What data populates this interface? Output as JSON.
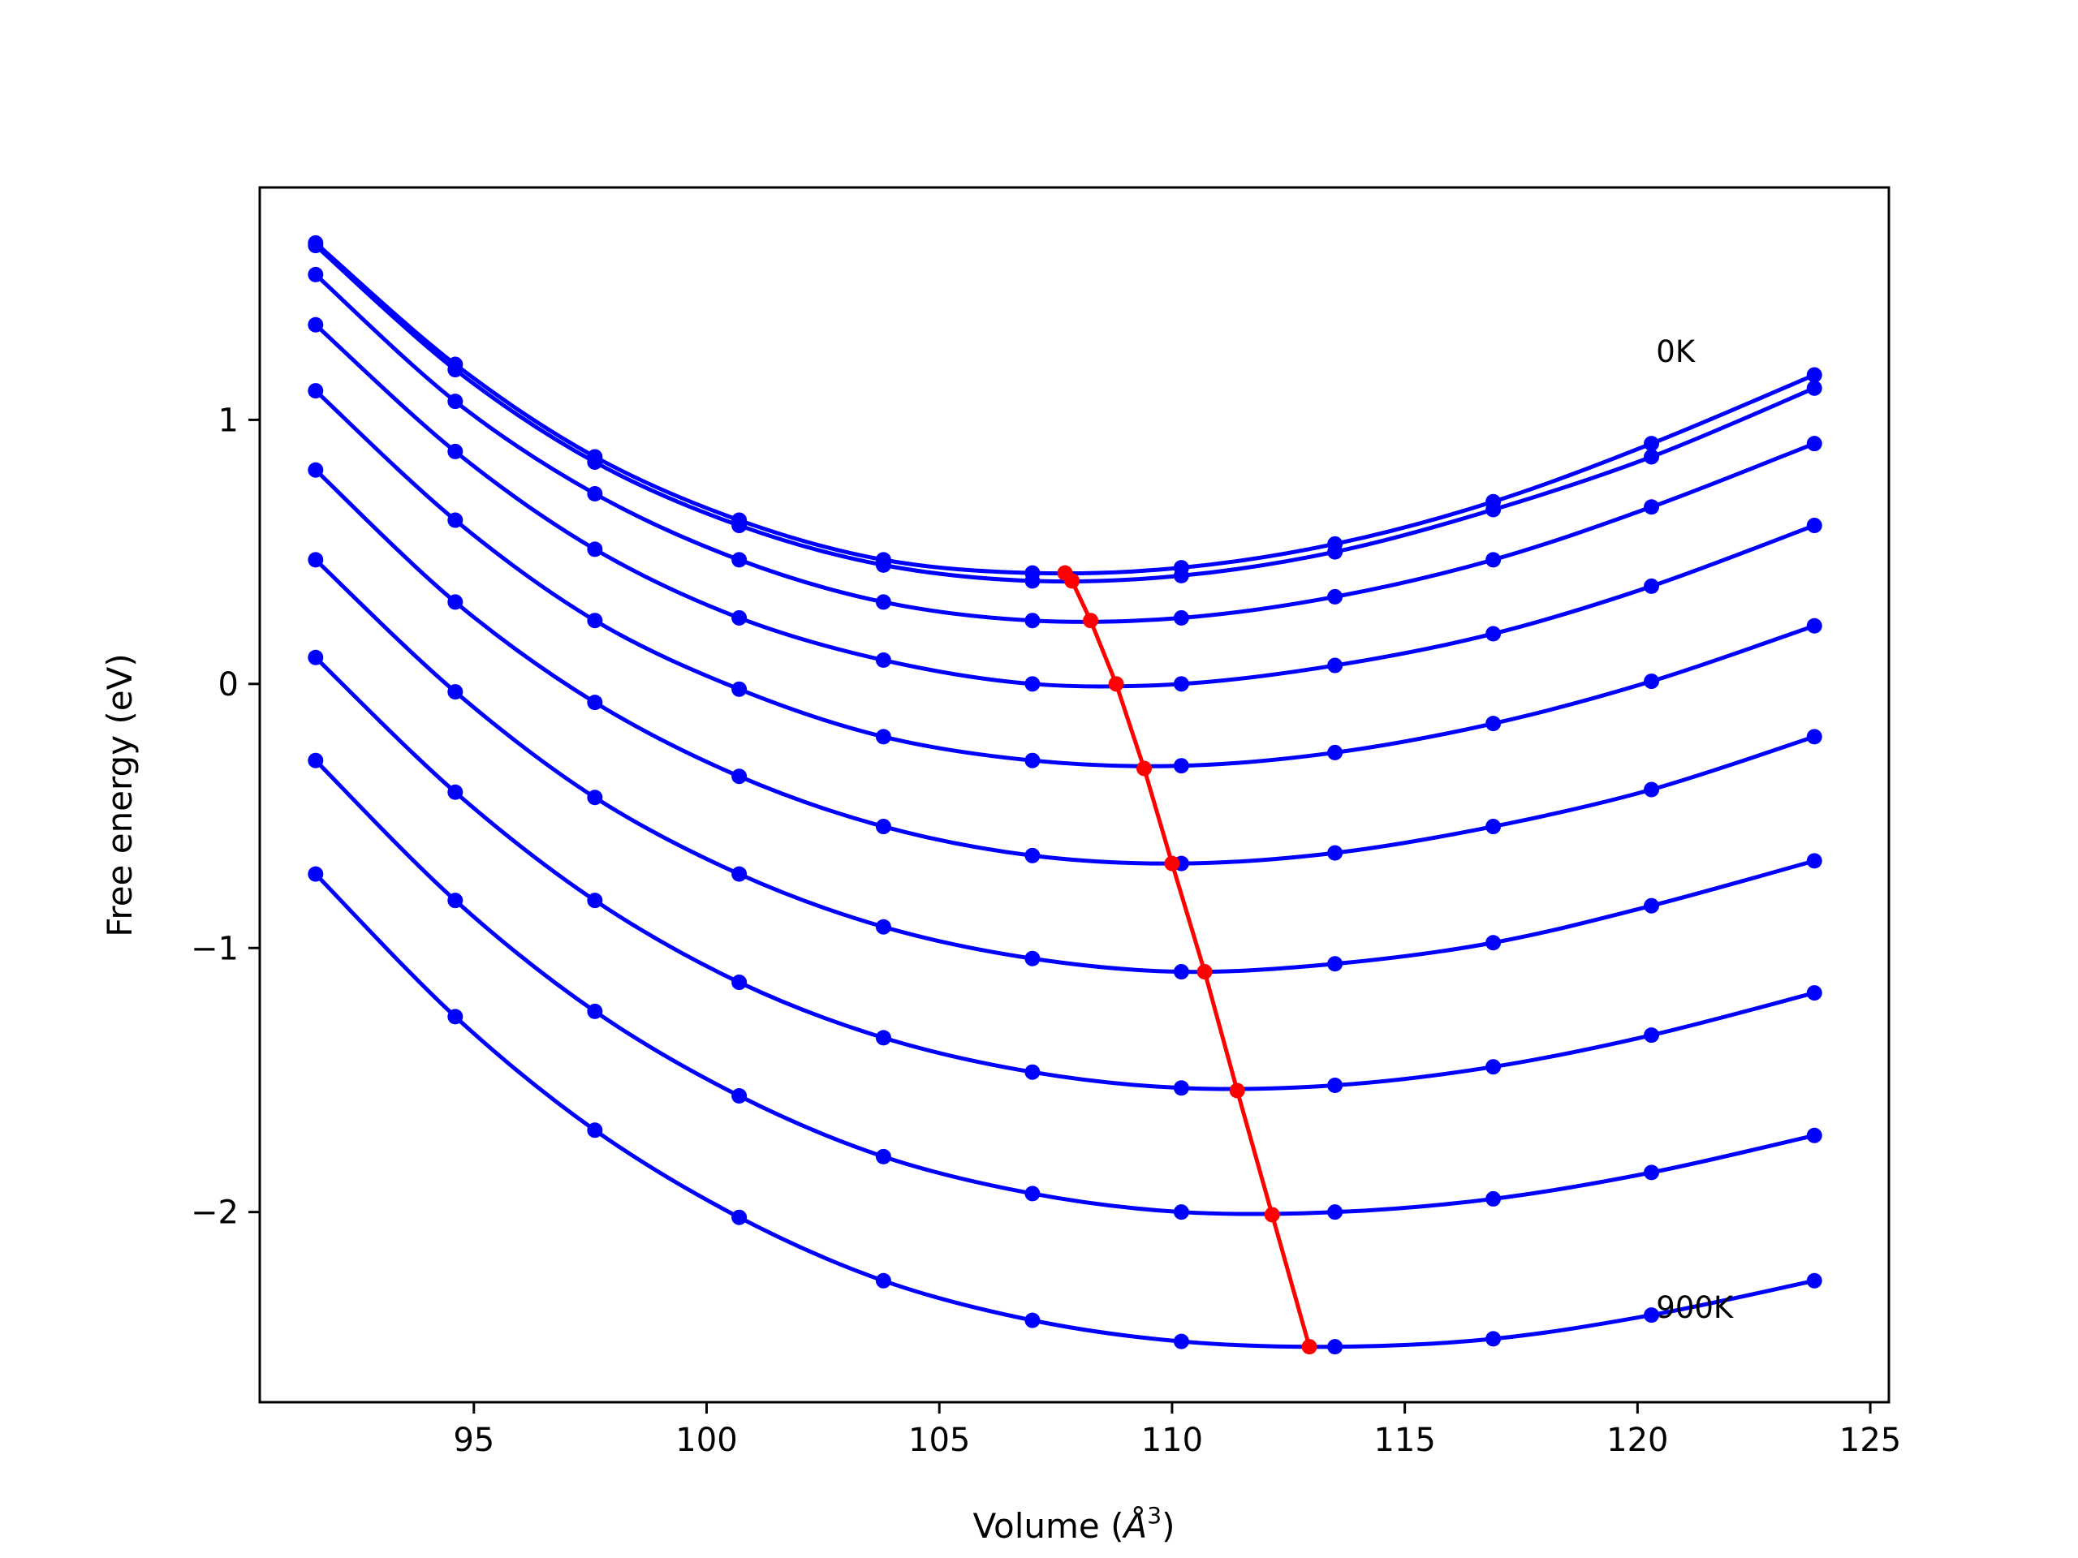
{
  "chart_data": {
    "type": "line",
    "xlabel": "Volume (",
    "xlabel_unit": "Å",
    "xlabel_exp": "3",
    "xlabel_close": ")",
    "ylabel": "Free energy (eV)",
    "xlim": [
      90.4,
      125.4
    ],
    "ylim": [
      -2.72,
      1.88
    ],
    "x_ticks": [
      95,
      100,
      105,
      110,
      115,
      120,
      125
    ],
    "x_tick_labels": [
      "95",
      "100",
      "105",
      "110",
      "115",
      "120",
      "125"
    ],
    "y_ticks": [
      -2,
      -1,
      0,
      1
    ],
    "y_tick_labels": [
      "−2",
      "−1",
      "0",
      "1"
    ],
    "grid": false,
    "series_color": "#0000ff",
    "min_color": "#ff0000",
    "annotations": [
      {
        "text": "0K",
        "x": 120.4,
        "y": 1.22
      },
      {
        "text": "900K",
        "x": 120.4,
        "y": -2.4
      }
    ],
    "volumes": [
      91.6,
      94.6,
      97.6,
      100.7,
      103.8,
      107.0,
      110.2,
      113.5,
      116.9,
      120.3,
      123.8
    ],
    "series": [
      {
        "values": [
          1.67,
          1.21,
          0.86,
          0.62,
          0.47,
          0.42,
          0.44,
          0.53,
          0.69,
          0.91,
          1.17
        ]
      },
      {
        "values": [
          1.66,
          1.19,
          0.84,
          0.6,
          0.45,
          0.39,
          0.41,
          0.5,
          0.66,
          0.86,
          1.12
        ]
      },
      {
        "values": [
          1.55,
          1.07,
          0.72,
          0.47,
          0.31,
          0.24,
          0.25,
          0.33,
          0.47,
          0.67,
          0.91
        ]
      },
      {
        "values": [
          1.36,
          0.88,
          0.51,
          0.25,
          0.09,
          0.0,
          0.0,
          0.07,
          0.19,
          0.37,
          0.6
        ]
      },
      {
        "values": [
          1.11,
          0.62,
          0.24,
          -0.02,
          -0.2,
          -0.29,
          -0.31,
          -0.26,
          -0.15,
          0.01,
          0.22
        ]
      },
      {
        "values": [
          0.81,
          0.31,
          -0.07,
          -0.35,
          -0.54,
          -0.65,
          -0.68,
          -0.64,
          -0.54,
          -0.4,
          -0.2
        ]
      },
      {
        "values": [
          0.47,
          -0.03,
          -0.43,
          -0.72,
          -0.92,
          -1.04,
          -1.09,
          -1.06,
          -0.98,
          -0.84,
          -0.67
        ]
      },
      {
        "values": [
          0.1,
          -0.41,
          -0.82,
          -1.13,
          -1.34,
          -1.47,
          -1.53,
          -1.52,
          -1.45,
          -1.33,
          -1.17
        ]
      },
      {
        "values": [
          -0.29,
          -0.82,
          -1.24,
          -1.56,
          -1.79,
          -1.93,
          -2.0,
          -2.0,
          -1.95,
          -1.85,
          -1.71
        ]
      },
      {
        "values": [
          -0.72,
          -1.26,
          -1.69,
          -2.02,
          -2.26,
          -2.41,
          -2.49,
          -2.51,
          -2.48,
          -2.39,
          -2.26
        ]
      }
    ],
    "minima": {
      "x": [
        107.7,
        107.85,
        108.25,
        108.8,
        109.4,
        110.0,
        110.7,
        111.4,
        112.15,
        112.95
      ],
      "y": [
        0.42,
        0.39,
        0.24,
        0.0,
        -0.32,
        -0.68,
        -1.09,
        -1.54,
        -2.01,
        -2.51
      ]
    }
  }
}
